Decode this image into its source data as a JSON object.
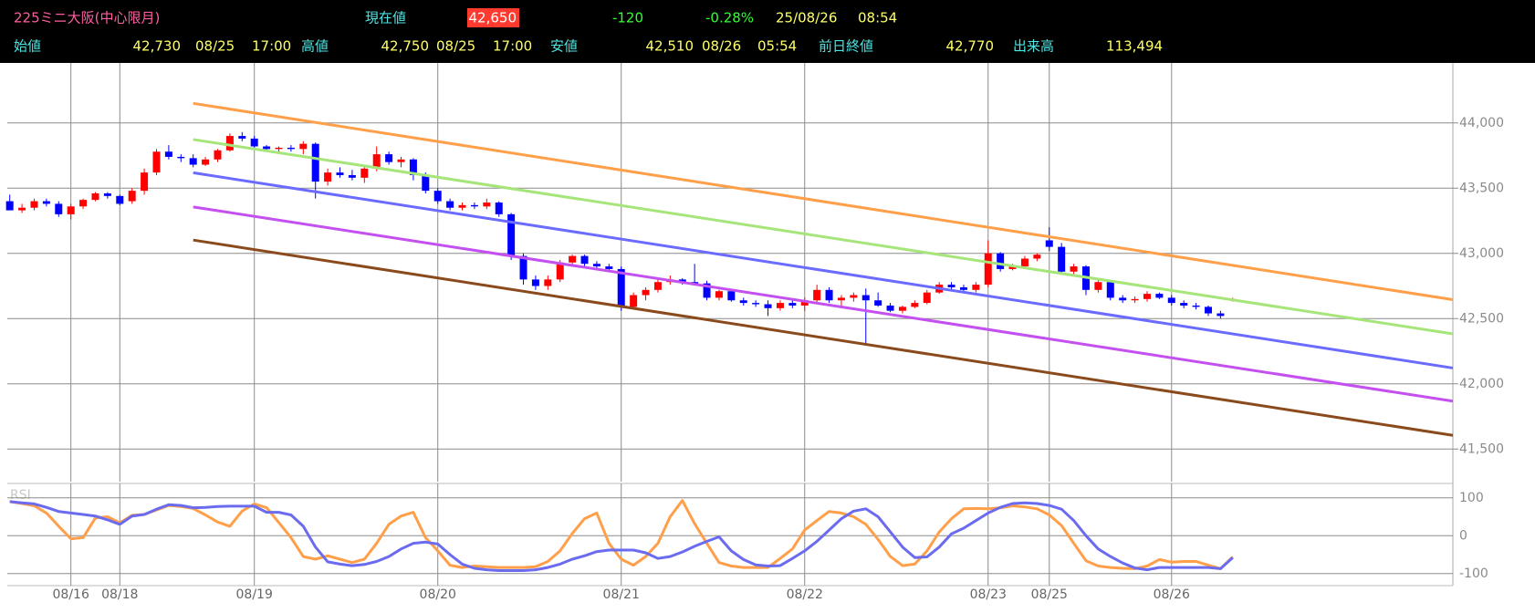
{
  "header": {
    "title": "225ミニ大阪(中心限月)",
    "current_label": "現在値",
    "current": "42,650",
    "change": "-120",
    "change_pct": "-0.28%",
    "date": "25/08/26",
    "time": "08:54",
    "stats": [
      {
        "label": "始値",
        "value": "42,730",
        "date": "08/25",
        "time": "17:00"
      },
      {
        "label": "高値",
        "value": "42,750",
        "date": "08/25",
        "time": "17:00"
      },
      {
        "label": "安値",
        "value": "42,510",
        "date": "08/26",
        "time": "05:54"
      },
      {
        "label": "前日終値",
        "value": "42,770"
      },
      {
        "label": "出来高",
        "value": "113,494"
      }
    ]
  },
  "chart_data": {
    "type": "candlestick",
    "categories": [
      null,
      null,
      null,
      null,
      null,
      "08/16",
      null,
      null,
      null,
      "08/18",
      null,
      null,
      null,
      null,
      null,
      null,
      null,
      null,
      null,
      null,
      "08/19",
      null,
      null,
      null,
      null,
      null,
      null,
      null,
      null,
      null,
      null,
      null,
      null,
      null,
      null,
      "08/20",
      null,
      null,
      null,
      null,
      null,
      null,
      null,
      null,
      null,
      null,
      null,
      null,
      null,
      null,
      "08/21",
      null,
      null,
      null,
      null,
      null,
      null,
      null,
      null,
      null,
      null,
      null,
      null,
      null,
      null,
      "08/22",
      null,
      null,
      null,
      null,
      null,
      null,
      null,
      null,
      null,
      null,
      null,
      null,
      null,
      null,
      "08/23",
      null,
      null,
      null,
      null,
      "08/25",
      null,
      null,
      null,
      null,
      null,
      null,
      null,
      null,
      null,
      "08/26",
      null,
      null,
      null,
      null,
      null
    ],
    "xlim": [
      -0.2,
      118
    ],
    "open": [
      43400,
      43330,
      43350,
      43400,
      43380,
      43300,
      43360,
      43410,
      43460,
      43440,
      43400,
      43480,
      43620,
      43780,
      43740,
      43730,
      43680,
      43720,
      43790,
      43900,
      43880,
      43820,
      43800,
      43810,
      43800,
      43840,
      43550,
      43620,
      43600,
      43580,
      43650,
      43760,
      43700,
      43720,
      43600,
      43480,
      43400,
      43350,
      43370,
      43360,
      43390,
      43300,
      42980,
      42800,
      42750,
      42800,
      42930,
      42980,
      42920,
      42900,
      42880,
      42590,
      42680,
      42720,
      42780,
      42800,
      42780,
      42770,
      42660,
      42710,
      42640,
      42620,
      42610,
      42580,
      42620,
      42600,
      42640,
      42720,
      42640,
      42660,
      42680,
      42640,
      42600,
      42560,
      42590,
      42620,
      42700,
      42760,
      42740,
      42720,
      42760,
      43000,
      42880,
      42900,
      42960,
      43100,
      43050,
      42860,
      42900,
      42720,
      42780,
      42660,
      42640,
      42650,
      42690,
      42660,
      42620,
      42600,
      42590,
      42540,
      42640
    ],
    "high": [
      43450,
      43380,
      43420,
      43420,
      43400,
      43380,
      43420,
      43470,
      43470,
      43450,
      43500,
      43650,
      43800,
      43830,
      43760,
      43760,
      43740,
      43800,
      43920,
      43930,
      43900,
      43830,
      43820,
      43830,
      43860,
      43850,
      43650,
      43660,
      43640,
      43660,
      43820,
      43780,
      43740,
      43730,
      43620,
      43500,
      43420,
      43390,
      43390,
      43420,
      43400,
      43310,
      43000,
      42830,
      42830,
      42950,
      42990,
      42990,
      42940,
      42920,
      42900,
      42700,
      42740,
      42800,
      42830,
      42810,
      42920,
      42790,
      42720,
      42720,
      42660,
      42640,
      42640,
      42640,
      42640,
      42660,
      42760,
      42740,
      42680,
      42700,
      42730,
      42700,
      42620,
      42600,
      42640,
      42720,
      42780,
      42780,
      42760,
      42780,
      43100,
      43010,
      42920,
      42980,
      43000,
      43200,
      43080,
      42920,
      42910,
      42800,
      42790,
      42680,
      42670,
      42710,
      42700,
      42680,
      42640,
      42620,
      42600,
      42560,
      42660
    ],
    "low": [
      43330,
      43310,
      43330,
      43360,
      43280,
      43260,
      43340,
      43400,
      43420,
      43370,
      43380,
      43450,
      43600,
      43720,
      43700,
      43660,
      43670,
      43700,
      43780,
      43860,
      43800,
      43780,
      43780,
      43780,
      43760,
      43420,
      43520,
      43580,
      43560,
      43540,
      43630,
      43680,
      43660,
      43560,
      43460,
      43380,
      43330,
      43330,
      43340,
      43340,
      43280,
      42950,
      42760,
      42720,
      42720,
      42780,
      42900,
      42900,
      42880,
      42860,
      42560,
      42570,
      42640,
      42700,
      42760,
      42760,
      42760,
      42640,
      42640,
      42630,
      42600,
      42590,
      42520,
      42560,
      42580,
      42560,
      42620,
      42620,
      42600,
      42630,
      42300,
      42590,
      42550,
      42540,
      42580,
      42610,
      42690,
      42720,
      42700,
      42700,
      42740,
      42860,
      42870,
      42890,
      42940,
      43020,
      42840,
      42840,
      42680,
      42700,
      42640,
      42620,
      42620,
      42630,
      42650,
      42600,
      42580,
      42570,
      42520,
      42500,
      42630
    ],
    "close": [
      43330,
      43350,
      43400,
      43380,
      43300,
      43360,
      43410,
      43460,
      43440,
      43380,
      43480,
      43620,
      43780,
      43740,
      43730,
      43680,
      43720,
      43790,
      43900,
      43880,
      43820,
      43800,
      43810,
      43800,
      43840,
      43550,
      43620,
      43600,
      43580,
      43650,
      43760,
      43700,
      43720,
      43600,
      43480,
      43400,
      43350,
      43370,
      43360,
      43390,
      43300,
      42980,
      42800,
      42750,
      42800,
      42930,
      42980,
      42920,
      42900,
      42880,
      42590,
      42680,
      42720,
      42780,
      42800,
      42780,
      42770,
      42660,
      42710,
      42640,
      42620,
      42610,
      42580,
      42620,
      42600,
      42640,
      42720,
      42640,
      42660,
      42680,
      42640,
      42600,
      42560,
      42590,
      42620,
      42700,
      42760,
      42740,
      42720,
      42760,
      43000,
      42880,
      42900,
      42960,
      42990,
      43050,
      42860,
      42900,
      42720,
      42780,
      42660,
      42640,
      42650,
      42690,
      42660,
      42620,
      42600,
      42590,
      42540,
      42520,
      42650
    ],
    "up_color": "#ff0000",
    "down_color": "#0000ff",
    "ylim": [
      41250,
      44460
    ],
    "yticks": [
      {
        "value": 41500,
        "label": "41,500"
      },
      {
        "value": 42000,
        "label": "42,000"
      },
      {
        "value": 42500,
        "label": "42,500"
      },
      {
        "value": 43000,
        "label": "43,000"
      },
      {
        "value": 43500,
        "label": "43,500"
      },
      {
        "value": 44000,
        "label": "44,000"
      }
    ],
    "grid": true,
    "trend_lines": [
      {
        "color": "#ff9f4a",
        "x": [
          15,
          118
        ],
        "values": [
          44150,
          42645
        ]
      },
      {
        "color": "#a6e57a",
        "x": [
          15,
          118
        ],
        "values": [
          43873,
          42383
        ]
      },
      {
        "color": "#6b6bff",
        "x": [
          15,
          118
        ],
        "values": [
          43618,
          42121
        ]
      },
      {
        "color": "#c450f0",
        "x": [
          15,
          118
        ],
        "values": [
          43356,
          41867
        ]
      },
      {
        "color": "#8b4a1c",
        "x": [
          15,
          118
        ],
        "values": [
          43102,
          41605
        ]
      }
    ],
    "rsi": {
      "title": "RSI",
      "ylim": [
        -115,
        126
      ],
      "yticks": [
        -100,
        0,
        100
      ],
      "series": [
        {
          "color": "#ff9f4a",
          "values": [
            90,
            85,
            79,
            60,
            25,
            -8,
            -5,
            47,
            50,
            34,
            54,
            56,
            68,
            80,
            77,
            72,
            55,
            36,
            25,
            65,
            84,
            74,
            35,
            -5,
            -55,
            -62,
            -53,
            -62,
            -71,
            -62,
            -20,
            30,
            52,
            62,
            -5,
            -40,
            -78,
            -84,
            -80,
            -82,
            -84,
            -84,
            -84,
            -82,
            -68,
            -40,
            6,
            45,
            60,
            -20,
            -62,
            -78,
            -55,
            -20,
            50,
            93,
            32,
            -20,
            -71,
            -80,
            -84,
            -84,
            -84,
            -60,
            -35,
            15,
            40,
            64,
            60,
            50,
            30,
            -10,
            -55,
            -79,
            -75,
            -40,
            10,
            45,
            71,
            72,
            71,
            74,
            79,
            76,
            71,
            55,
            27,
            -20,
            -66,
            -80,
            -84,
            -86,
            -87,
            -80,
            -63,
            -70,
            -68,
            -68,
            -78,
            -87,
            -56
          ]
        },
        {
          "color": "#6b6bf0",
          "values": [
            90,
            87,
            84,
            75,
            64,
            60,
            56,
            52,
            42,
            30,
            52,
            56,
            70,
            82,
            80,
            74,
            75,
            77,
            78,
            78,
            78,
            62,
            62,
            55,
            25,
            -30,
            -69,
            -75,
            -79,
            -76,
            -68,
            -55,
            -35,
            -20,
            -17,
            -22,
            -50,
            -75,
            -86,
            -90,
            -92,
            -92,
            -92,
            -90,
            -84,
            -75,
            -62,
            -53,
            -42,
            -38,
            -38,
            -38,
            -45,
            -60,
            -55,
            -43,
            -28,
            -15,
            -3,
            -40,
            -63,
            -77,
            -80,
            -79,
            -60,
            -40,
            -15,
            15,
            45,
            65,
            71,
            50,
            10,
            -30,
            -58,
            -56,
            -30,
            5,
            20,
            40,
            60,
            75,
            85,
            87,
            85,
            80,
            70,
            40,
            0,
            -35,
            -55,
            -72,
            -85,
            -90,
            -84,
            -84,
            -84,
            -84,
            -84,
            -87,
            -58
          ]
        }
      ]
    }
  }
}
